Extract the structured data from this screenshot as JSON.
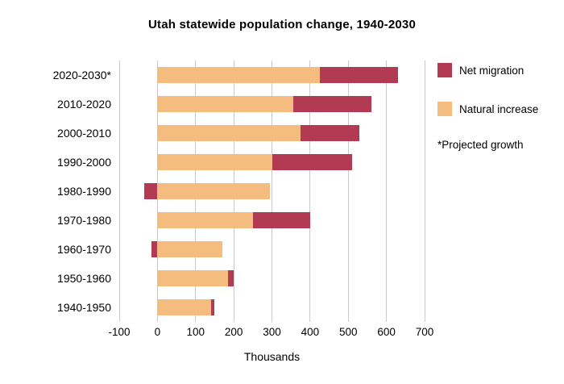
{
  "legend": {
    "net_migration": "Net migration",
    "natural_increase": "Natural increase",
    "footnote": "*Projected growth"
  },
  "colors": {
    "net_migration": "#b23b53",
    "natural_increase": "#f4bd7f",
    "gridline": "#c9c9c9"
  },
  "chart_data": {
    "type": "bar",
    "orientation": "horizontal",
    "stacked": true,
    "title": "Utah statewide population change, 1940-2030",
    "xlabel": "Thousands",
    "categories": [
      "2020-2030*",
      "2010-2020",
      "2000-2010",
      "1990-2000",
      "1980-1990",
      "1970-1980",
      "1960-1970",
      "1950-1960",
      "1940-1950"
    ],
    "series": [
      {
        "name": "Natural increase",
        "color": "#f4bd7f",
        "values": [
          425,
          355,
          375,
          300,
          295,
          250,
          170,
          185,
          140
        ]
      },
      {
        "name": "Net migration",
        "color": "#b23b53",
        "values": [
          205,
          205,
          155,
          210,
          -35,
          150,
          -15,
          15,
          10
        ]
      }
    ],
    "xlim": [
      -100,
      700
    ],
    "xticks": [
      -100,
      0,
      100,
      200,
      300,
      400,
      500,
      600,
      700
    ],
    "grid": true,
    "legend_position": "right",
    "annotations": [
      "*Projected growth"
    ]
  }
}
